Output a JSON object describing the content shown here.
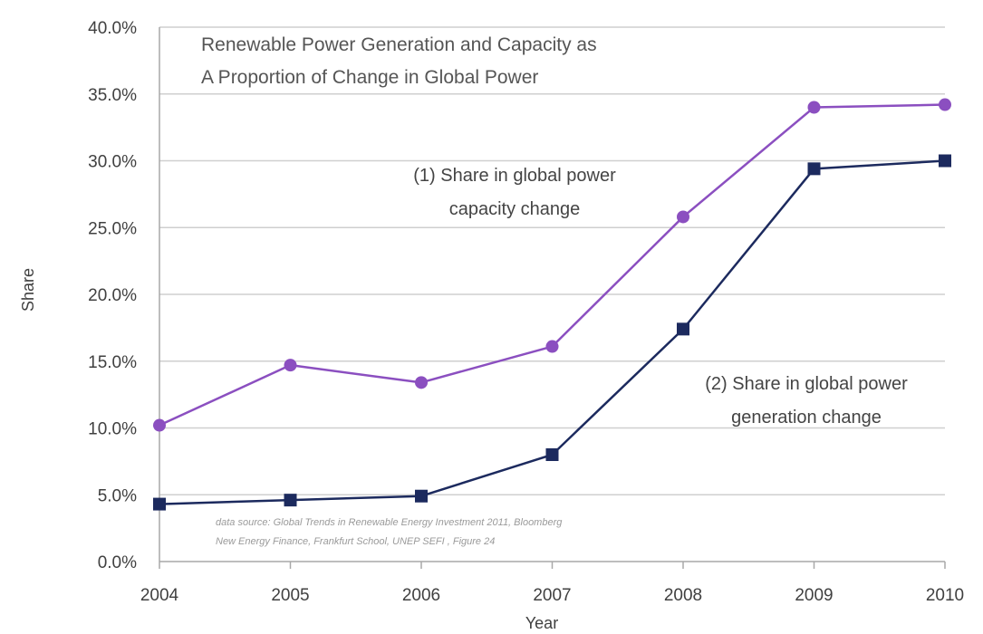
{
  "chart_data": {
    "type": "line",
    "title_lines": [
      "Renewable Power Generation and Capacity as",
      "A Proportion of Change in Global Power"
    ],
    "xlabel": "Year",
    "ylabel": "Share",
    "categories": [
      "2004",
      "2005",
      "2006",
      "2007",
      "2008",
      "2009",
      "2010"
    ],
    "ylim": [
      0,
      0.4
    ],
    "yticks": [
      0,
      0.05,
      0.1,
      0.15,
      0.2,
      0.25,
      0.3,
      0.35,
      0.4
    ],
    "ytick_labels": [
      "0.0%",
      "5.0%",
      "10.0%",
      "15.0%",
      "20.0%",
      "25.0%",
      "30.0%",
      "35.0%",
      "40.0%"
    ],
    "grid": true,
    "series": [
      {
        "name": "(1) Share in global power capacity change",
        "label_lines": [
          "(1) Share in global power",
          "capacity change"
        ],
        "color": "#8b4fc0",
        "marker": "circle",
        "values": [
          0.102,
          0.147,
          0.134,
          0.161,
          0.258,
          0.34,
          0.342
        ]
      },
      {
        "name": "(2) Share in global power generation change",
        "label_lines": [
          "(2) Share in global power",
          "generation change"
        ],
        "color": "#1c2a5e",
        "marker": "square",
        "values": [
          0.043,
          0.046,
          0.049,
          0.08,
          0.174,
          0.294,
          0.3
        ]
      }
    ],
    "source_lines": [
      "data source: Global Trends in Renewable Energy Investment 2011, Bloomberg",
      "New Energy Finance, Frankfurt School, UNEP SEFI , Figure 24"
    ]
  }
}
